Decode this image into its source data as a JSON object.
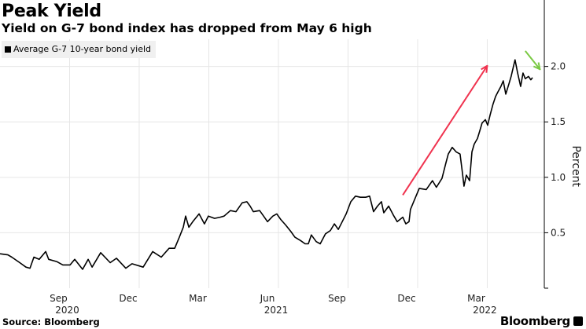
{
  "chart_data": {
    "type": "line",
    "title": "Peak Yield",
    "subtitle": "Yield on G-7 bond index has dropped from May 6 high",
    "ylabel": "Percent",
    "xlabel": "",
    "ylim": [
      0,
      2.21
    ],
    "xlim": [
      0,
      23.46
    ],
    "x_unit": "months since start of Jun 2020 (approx.)",
    "grid": true,
    "legend": {
      "position": "top-left",
      "entries": [
        "Average G-7 10-year bond yield"
      ]
    },
    "yticks": [
      {
        "value": 0.5,
        "label": "0.5"
      },
      {
        "value": 1.0,
        "label": "1.0"
      },
      {
        "value": 1.5,
        "label": "1.5"
      },
      {
        "value": 2.0,
        "label": "2.0"
      }
    ],
    "xticks": [
      {
        "value": 3,
        "label": "Sep",
        "year": "2020"
      },
      {
        "value": 6,
        "label": "Dec",
        "year": ""
      },
      {
        "value": 9,
        "label": "Mar",
        "year": ""
      },
      {
        "value": 12,
        "label": "Jun",
        "year": "2021"
      },
      {
        "value": 15,
        "label": "Sep",
        "year": ""
      },
      {
        "value": 18,
        "label": "Dec",
        "year": ""
      },
      {
        "value": 21,
        "label": "Mar",
        "year": "2022"
      }
    ],
    "series": [
      {
        "name": "Average G-7 10-year bond yield",
        "color": "#000000",
        "points": [
          [
            0.0,
            0.31
          ],
          [
            0.34,
            0.3
          ],
          [
            0.51,
            0.28
          ],
          [
            0.85,
            0.23
          ],
          [
            1.12,
            0.19
          ],
          [
            1.29,
            0.18
          ],
          [
            1.46,
            0.28
          ],
          [
            1.69,
            0.26
          ],
          [
            1.97,
            0.33
          ],
          [
            2.1,
            0.26
          ],
          [
            2.44,
            0.24
          ],
          [
            2.71,
            0.21
          ],
          [
            3.02,
            0.21
          ],
          [
            3.22,
            0.26
          ],
          [
            3.56,
            0.17
          ],
          [
            3.8,
            0.26
          ],
          [
            3.97,
            0.19
          ],
          [
            4.34,
            0.32
          ],
          [
            4.75,
            0.23
          ],
          [
            5.02,
            0.27
          ],
          [
            5.42,
            0.18
          ],
          [
            5.69,
            0.22
          ],
          [
            6.17,
            0.19
          ],
          [
            6.58,
            0.33
          ],
          [
            6.95,
            0.28
          ],
          [
            7.29,
            0.36
          ],
          [
            7.53,
            0.36
          ],
          [
            7.73,
            0.46
          ],
          [
            7.9,
            0.55
          ],
          [
            8.0,
            0.65
          ],
          [
            8.14,
            0.55
          ],
          [
            8.31,
            0.6
          ],
          [
            8.58,
            0.67
          ],
          [
            8.81,
            0.58
          ],
          [
            8.98,
            0.65
          ],
          [
            9.25,
            0.63
          ],
          [
            9.49,
            0.64
          ],
          [
            9.66,
            0.65
          ],
          [
            9.93,
            0.7
          ],
          [
            10.17,
            0.69
          ],
          [
            10.44,
            0.77
          ],
          [
            10.64,
            0.78
          ],
          [
            10.78,
            0.74
          ],
          [
            10.92,
            0.69
          ],
          [
            11.19,
            0.7
          ],
          [
            11.36,
            0.65
          ],
          [
            11.53,
            0.6
          ],
          [
            11.76,
            0.65
          ],
          [
            11.93,
            0.67
          ],
          [
            12.1,
            0.62
          ],
          [
            12.31,
            0.57
          ],
          [
            12.54,
            0.51
          ],
          [
            12.71,
            0.46
          ],
          [
            12.95,
            0.43
          ],
          [
            13.15,
            0.4
          ],
          [
            13.29,
            0.4
          ],
          [
            13.42,
            0.48
          ],
          [
            13.63,
            0.42
          ],
          [
            13.8,
            0.4
          ],
          [
            14.03,
            0.49
          ],
          [
            14.24,
            0.52
          ],
          [
            14.41,
            0.58
          ],
          [
            14.58,
            0.53
          ],
          [
            14.75,
            0.6
          ],
          [
            14.92,
            0.67
          ],
          [
            15.12,
            0.78
          ],
          [
            15.32,
            0.83
          ],
          [
            15.53,
            0.82
          ],
          [
            15.76,
            0.82
          ],
          [
            15.93,
            0.83
          ],
          [
            16.1,
            0.69
          ],
          [
            16.27,
            0.74
          ],
          [
            16.44,
            0.78
          ],
          [
            16.54,
            0.68
          ],
          [
            16.75,
            0.74
          ],
          [
            16.95,
            0.66
          ],
          [
            17.12,
            0.6
          ],
          [
            17.36,
            0.64
          ],
          [
            17.49,
            0.58
          ],
          [
            17.63,
            0.6
          ],
          [
            17.69,
            0.71
          ],
          [
            18.07,
            0.9
          ],
          [
            18.37,
            0.89
          ],
          [
            18.64,
            0.97
          ],
          [
            18.81,
            0.91
          ],
          [
            19.05,
            0.99
          ],
          [
            19.22,
            1.13
          ],
          [
            19.32,
            1.21
          ],
          [
            19.49,
            1.27
          ],
          [
            19.66,
            1.23
          ],
          [
            19.83,
            1.21
          ],
          [
            19.93,
            1.04
          ],
          [
            20.0,
            0.92
          ],
          [
            20.1,
            1.02
          ],
          [
            20.24,
            0.97
          ],
          [
            20.34,
            1.23
          ],
          [
            20.44,
            1.3
          ],
          [
            20.58,
            1.35
          ],
          [
            20.68,
            1.42
          ],
          [
            20.78,
            1.49
          ],
          [
            20.92,
            1.52
          ],
          [
            21.02,
            1.47
          ],
          [
            21.12,
            1.56
          ],
          [
            21.25,
            1.66
          ],
          [
            21.36,
            1.73
          ],
          [
            21.46,
            1.77
          ],
          [
            21.59,
            1.82
          ],
          [
            21.69,
            1.87
          ],
          [
            21.8,
            1.75
          ],
          [
            21.93,
            1.84
          ],
          [
            22.03,
            1.91
          ],
          [
            22.14,
            2.01
          ],
          [
            22.2,
            2.06
          ],
          [
            22.31,
            1.94
          ],
          [
            22.44,
            1.82
          ],
          [
            22.54,
            1.94
          ],
          [
            22.64,
            1.89
          ],
          [
            22.78,
            1.91
          ],
          [
            22.88,
            1.88
          ],
          [
            22.95,
            1.9
          ]
        ]
      }
    ],
    "annotations": [
      {
        "type": "arrow",
        "color": "#f0334f",
        "from": [
          17.36,
          0.84
        ],
        "to": [
          20.98,
          2.0
        ]
      },
      {
        "type": "arrow",
        "color": "#7ac943",
        "from": [
          22.64,
          2.14
        ],
        "to": [
          23.25,
          1.98
        ]
      }
    ]
  },
  "footer": {
    "source": "Source: Bloomberg",
    "brand": "Bloomberg"
  }
}
